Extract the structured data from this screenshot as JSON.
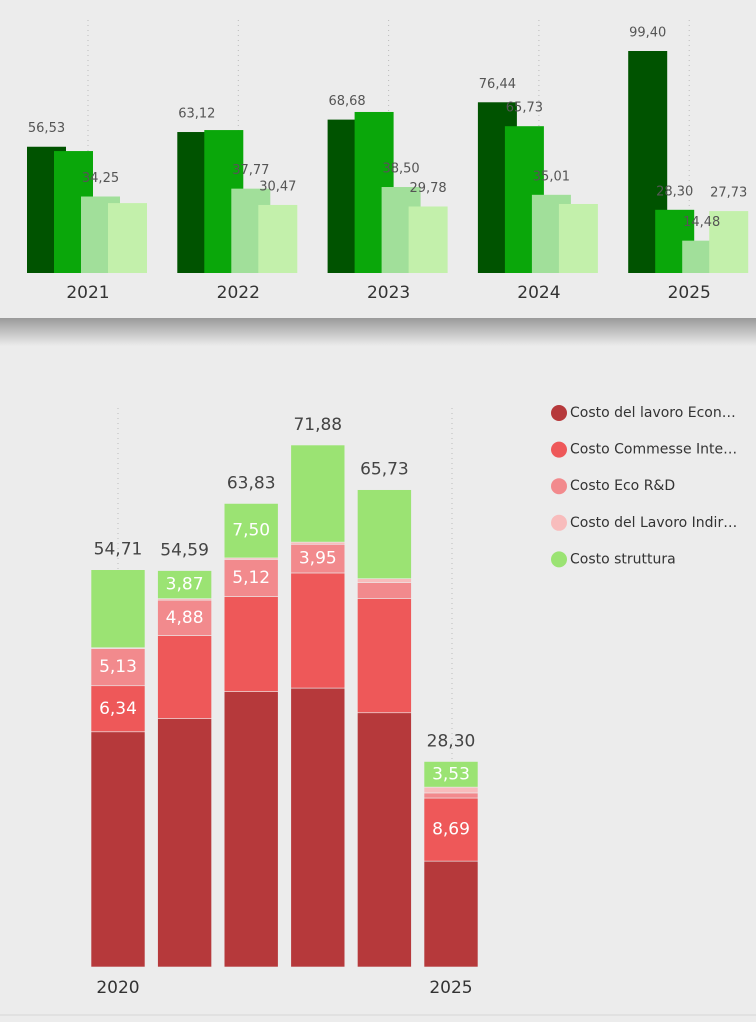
{
  "chart_data": [
    {
      "type": "grouped_bar",
      "categories": [
        "2021",
        "2022",
        "2023",
        "2024",
        "2025"
      ],
      "series": [
        {
          "color": "#005300",
          "values": [
            56.53,
            63.12,
            68.68,
            76.44,
            99.4
          ],
          "value_labels": [
            "56,53",
            "63,12",
            "68,68",
            "76,44",
            "99,40"
          ]
        },
        {
          "color": "#0aa70a",
          "values": [
            54.6,
            64.0,
            72.1,
            65.73,
            28.3
          ],
          "value_labels": [
            null,
            null,
            null,
            "65,73",
            "28,30"
          ]
        },
        {
          "color": "#a1df9a",
          "values": [
            34.25,
            37.77,
            38.5,
            35.01,
            14.48
          ],
          "value_labels": [
            "34,25",
            "37,77",
            "38,50",
            "35,01",
            "14,48"
          ]
        },
        {
          "color": "#c3f0ab",
          "values": [
            31.3,
            30.47,
            29.78,
            30.9,
            27.73
          ],
          "value_labels": [
            null,
            "30,47",
            "29,78",
            null,
            "27,73"
          ]
        }
      ]
    },
    {
      "type": "stacked_bar",
      "categories": [
        "2020",
        null,
        null,
        null,
        null,
        "2025"
      ],
      "legend": "top-right",
      "totals": [
        54.71,
        54.59,
        63.83,
        71.88,
        65.73,
        28.3
      ],
      "total_labels": [
        "54,71",
        "54,59",
        "63,83",
        "71,88",
        "65,73",
        "28,30"
      ],
      "series": [
        {
          "name": "Costo del lavoro Econ…",
          "color": "#b6393b",
          "values": [
            32.39,
            34.2,
            37.92,
            38.41,
            35.01,
            14.58
          ],
          "value_labels": [
            null,
            null,
            null,
            null,
            null,
            null
          ]
        },
        {
          "name": "Costo Commesse Inte…",
          "color": "#ee5859",
          "values": [
            6.34,
            11.44,
            13.09,
            15.85,
            15.71,
            8.69
          ],
          "value_labels": [
            "6,34",
            null,
            null,
            null,
            null,
            "8,69"
          ]
        },
        {
          "name": "Costo Eco R&D",
          "color": "#f28a8d",
          "values": [
            5.13,
            4.88,
            5.12,
            3.95,
            2.2,
            0.7
          ],
          "value_labels": [
            "5,13",
            "4,88",
            "5,12",
            "3,95",
            null,
            null
          ]
        },
        {
          "name": "Costo del Lavoro Indir…",
          "color": "#f8bcbc",
          "values": [
            0.1,
            0.2,
            0.2,
            0.3,
            0.55,
            0.8
          ],
          "value_labels": [
            null,
            null,
            null,
            null,
            null,
            null
          ]
        },
        {
          "name": "Costo struttura",
          "color": "#9be373",
          "values": [
            10.75,
            3.87,
            7.5,
            13.37,
            12.26,
            3.53
          ],
          "value_labels": [
            null,
            "3,87",
            "7,50",
            null,
            null,
            "3,53"
          ]
        }
      ]
    }
  ]
}
